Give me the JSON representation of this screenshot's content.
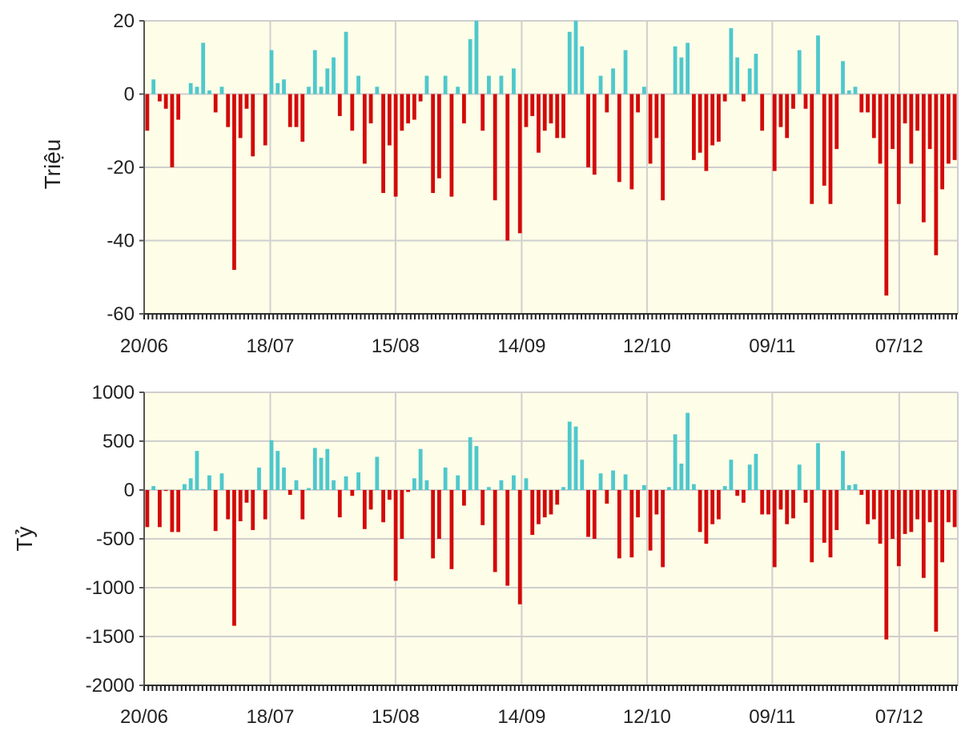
{
  "colors": {
    "plot_background": "#FDFDE8",
    "grid": "#CFCFCF",
    "positive": "#4EC8CC",
    "negative": "#D30A0A"
  },
  "chart_data": [
    {
      "type": "bar",
      "ylabel": "Triệu",
      "ylim": [
        -60,
        20
      ],
      "yticks": [
        20,
        0,
        -20,
        -40,
        -60
      ],
      "xticks": [
        "20/06",
        "18/07",
        "15/08",
        "14/09",
        "12/10",
        "09/11",
        "07/12"
      ],
      "grid": true,
      "values": [
        -10,
        4,
        -2,
        -4,
        -20,
        -7,
        0,
        3,
        2,
        14,
        1,
        -5,
        2,
        -9,
        -48,
        -12,
        -4,
        -17,
        0,
        -14,
        12,
        3,
        4,
        -9,
        -9,
        -13,
        2,
        12,
        2,
        7,
        10,
        -6,
        17,
        -10,
        5,
        -19,
        -8,
        2,
        -27,
        -14,
        -28,
        -10,
        -8,
        -7,
        -2,
        5,
        -27,
        -23,
        5,
        -28,
        2,
        -8,
        15,
        20,
        -10,
        5,
        -29,
        5,
        -40,
        7,
        -38,
        -9,
        -6,
        -16,
        -10,
        -8,
        -12,
        -12,
        17,
        20,
        13,
        -20,
        -22,
        5,
        -5,
        7,
        -24,
        12,
        -26,
        -5,
        2,
        -19,
        -12,
        -29,
        0,
        13,
        10,
        14,
        -18,
        -16,
        -21,
        -14,
        -13,
        -2,
        18,
        10,
        -2,
        7,
        11,
        -10,
        0,
        -21,
        -9,
        -12,
        -4,
        12,
        -4,
        -30,
        16,
        -25,
        -30,
        -15,
        9,
        1,
        2,
        -5,
        -5,
        -12,
        -19,
        -55,
        -15,
        -30,
        -8,
        -19,
        -10,
        -35,
        -15,
        -44,
        -26,
        -19,
        -18
      ],
      "start_label": "20/06"
    },
    {
      "type": "bar",
      "ylabel": "Tỷ",
      "ylim": [
        -2000,
        1000
      ],
      "yticks": [
        1000,
        500,
        0,
        -500,
        -1000,
        -1500,
        -2000
      ],
      "xticks": [
        "20/06",
        "18/07",
        "15/08",
        "14/09",
        "12/10",
        "09/11",
        "07/12"
      ],
      "grid": true,
      "values": [
        -380,
        40,
        -380,
        -10,
        -430,
        -430,
        60,
        120,
        400,
        10,
        150,
        -420,
        170,
        -300,
        -1390,
        -320,
        -130,
        -410,
        230,
        -300,
        510,
        400,
        230,
        -50,
        100,
        -300,
        20,
        430,
        330,
        420,
        100,
        -280,
        140,
        -60,
        180,
        -400,
        -200,
        340,
        -330,
        -100,
        -930,
        -500,
        -20,
        120,
        420,
        100,
        -700,
        -500,
        230,
        -810,
        150,
        -160,
        540,
        450,
        -360,
        30,
        -840,
        100,
        -980,
        150,
        -1170,
        120,
        -460,
        -350,
        -280,
        -250,
        -150,
        30,
        700,
        650,
        310,
        -480,
        -500,
        170,
        -140,
        200,
        -700,
        160,
        -690,
        -280,
        50,
        -620,
        -250,
        -790,
        30,
        570,
        270,
        790,
        60,
        -430,
        -550,
        -350,
        -300,
        40,
        310,
        -60,
        -130,
        260,
        370,
        -250,
        -250,
        -790,
        -200,
        -350,
        -290,
        260,
        -130,
        -740,
        480,
        -540,
        -690,
        -410,
        400,
        50,
        60,
        -50,
        -350,
        -300,
        -550,
        -1530,
        -500,
        -780,
        -450,
        -430,
        -300,
        -900,
        -330,
        -1450,
        -740,
        -330,
        -380
      ]
    }
  ]
}
